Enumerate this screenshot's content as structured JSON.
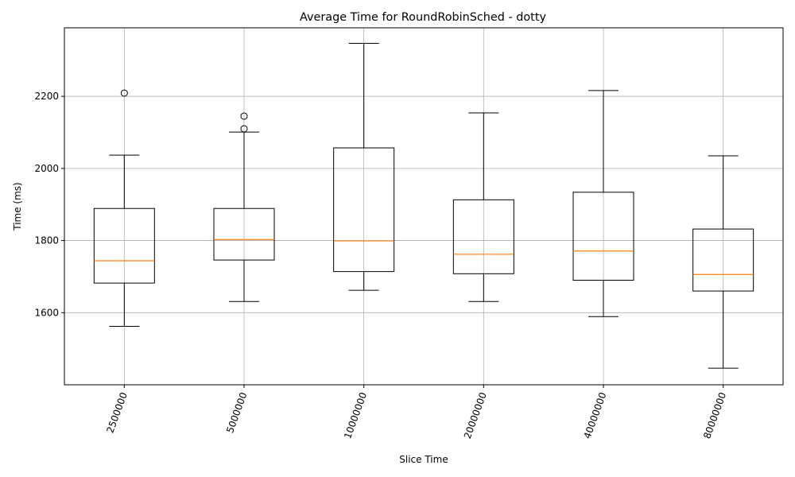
{
  "chart_data": {
    "type": "boxplot",
    "title": "Average Time for RoundRobinSched - dotty",
    "xlabel": "Slice Time",
    "ylabel": "Time (ms)",
    "categories": [
      "2500000",
      "5000000",
      "10000000",
      "20000000",
      "40000000",
      "80000000"
    ],
    "boxes": [
      {
        "whisker_low": 1562,
        "q1": 1682,
        "median": 1744,
        "q3": 1889,
        "whisker_high": 2037,
        "outliers": [
          2209
        ]
      },
      {
        "whisker_low": 1631,
        "q1": 1746,
        "median": 1803,
        "q3": 1889,
        "whisker_high": 2101,
        "outliers": [
          2110,
          2145
        ]
      },
      {
        "whisker_low": 1662,
        "q1": 1714,
        "median": 1799,
        "q3": 2057,
        "whisker_high": 2347,
        "outliers": []
      },
      {
        "whisker_low": 1631,
        "q1": 1708,
        "median": 1762,
        "q3": 1913,
        "whisker_high": 2154,
        "outliers": []
      },
      {
        "whisker_low": 1589,
        "q1": 1690,
        "median": 1771,
        "q3": 1934,
        "whisker_high": 2216,
        "outliers": []
      },
      {
        "whisker_low": 1446,
        "q1": 1660,
        "median": 1706,
        "q3": 1832,
        "whisker_high": 2035,
        "outliers": []
      }
    ],
    "ylim": [
      1400,
      2390
    ],
    "yticks": [
      1600,
      1800,
      2000,
      2200
    ],
    "xtick_rotation": 70,
    "grid": true,
    "colors": {
      "box": "#000000",
      "median": "#ff7f0e",
      "grid": "#b0b0b0"
    }
  }
}
